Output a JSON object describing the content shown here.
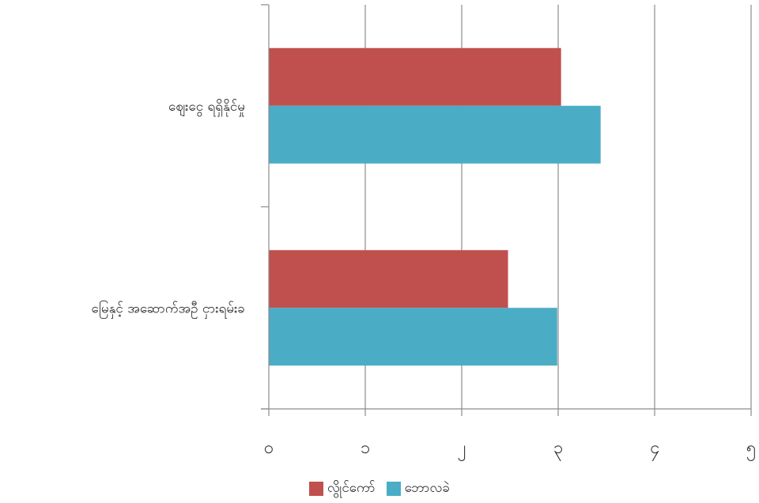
{
  "chart_data": {
    "type": "bar",
    "orientation": "horizontal",
    "categories": [
      "ဈေးငွေ ရရှိနိုင်မှု",
      "မြေနှင့် အဆောက်အဦ ငှားရမ်းခ"
    ],
    "series": [
      {
        "name": "လွိုင်ကော်",
        "color": "#c0504d",
        "values": [
          3.03,
          2.48
        ]
      },
      {
        "name": "ဘောလခဲ",
        "color": "#4bacc6",
        "values": [
          3.44,
          2.99
        ]
      }
    ],
    "x_ticks": [
      0,
      1,
      2,
      3,
      4,
      5
    ],
    "x_tick_labels": [
      "၀",
      "၁",
      "၂",
      "၃",
      "၄",
      "၅"
    ],
    "xlim": [
      0,
      5
    ],
    "grid": true,
    "legend_position": "bottom"
  }
}
